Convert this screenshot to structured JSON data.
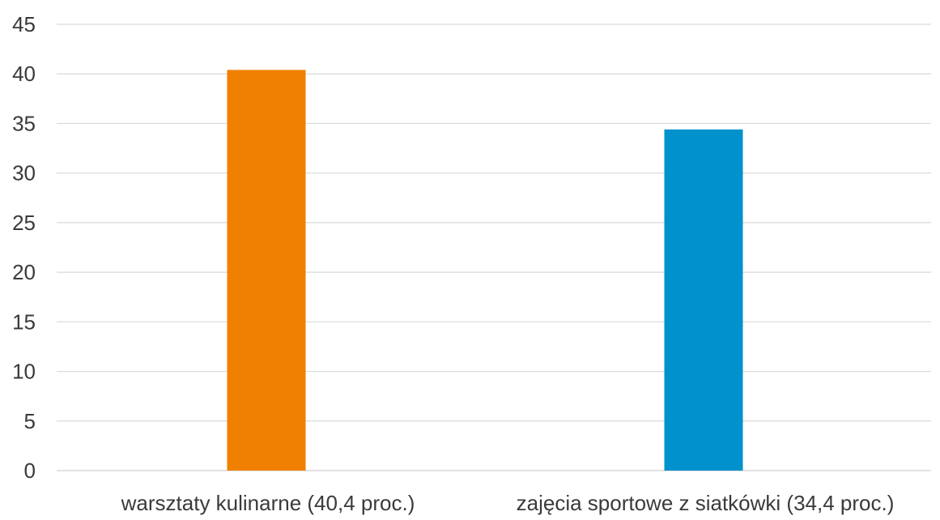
{
  "chart_data": {
    "type": "bar",
    "title": "",
    "xlabel": "",
    "ylabel": "",
    "categories": [
      "warsztaty kulinarne (40,4 proc.)",
      "zajęcia sportowe z siatkówki (34,4 proc.)"
    ],
    "values": [
      40.4,
      34.4
    ],
    "ylim": [
      0,
      45
    ],
    "yticks": [
      0,
      5,
      10,
      15,
      20,
      25,
      30,
      35,
      40,
      45
    ],
    "grid": true,
    "legend": "none",
    "bar_colors": [
      "#f08000",
      "#0191cc"
    ]
  },
  "colors": {
    "gridline": "#d9d9d9",
    "text": "#3a3a3a",
    "background": "#ffffff"
  }
}
